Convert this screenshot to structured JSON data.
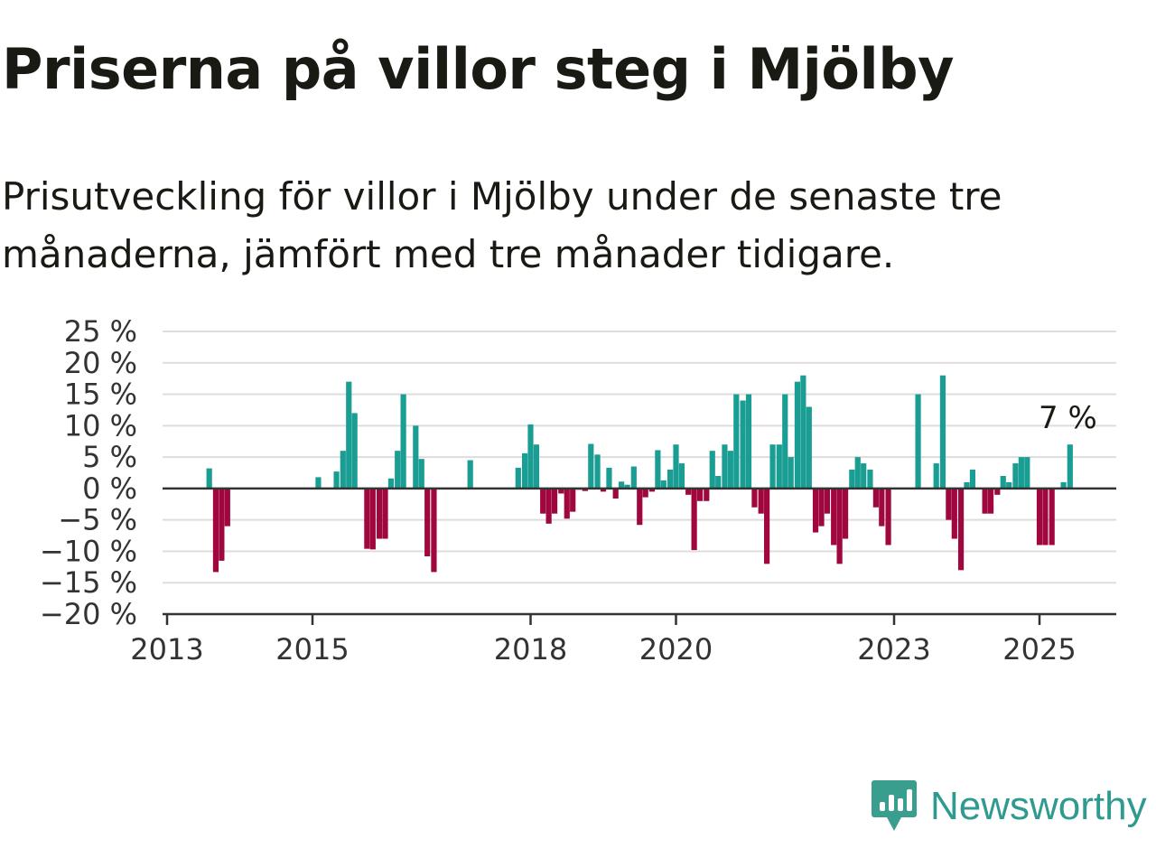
{
  "title": "Priserna på villor steg i Mjölby",
  "subtitle": "Prisutveckling för villor i Mjölby under de senaste tre månaderna, jämfört med tre månader tidigare.",
  "brand": "Newsworthy",
  "colors": {
    "positive": "#1a9e93",
    "negative": "#a0073f",
    "grid": "#dddddd",
    "axis": "#333333",
    "logo": "#3a9e8f"
  },
  "chart_data": {
    "type": "bar",
    "title": "",
    "xlabel": "",
    "ylabel": "",
    "ylim": [
      -20,
      25
    ],
    "y_ticks": [
      25,
      20,
      15,
      10,
      5,
      0,
      -5,
      -10,
      -15,
      -20
    ],
    "y_tick_labels": [
      "25 %",
      "20 %",
      "15 %",
      "10 %",
      "5 %",
      "0 %",
      "−5 %",
      "−10 %",
      "−15 %",
      "−20 %"
    ],
    "x_ticks": [
      2013,
      2015,
      2018,
      2020,
      2023,
      2025
    ],
    "x_tick_labels": [
      "2013",
      "2015",
      "2018",
      "2020",
      "2023",
      "2025"
    ],
    "annotation": {
      "text": "7 %",
      "x": 2025.42,
      "y": 7
    },
    "grid": true,
    "series": [
      {
        "x": [
          2013.58,
          2013.67,
          2013.75,
          2013.83,
          2015.08,
          2015.33,
          2015.42,
          2015.5,
          2015.58,
          2015.75,
          2015.83,
          2015.92,
          2016.0,
          2016.08,
          2016.17,
          2016.25,
          2016.42,
          2016.5,
          2016.58,
          2016.67,
          2017.17,
          2018.83,
          2018.92,
          2019.0,
          2019.08,
          2019.17,
          2019.25,
          2019.33,
          2019.42,
          2019.5,
          2019.58,
          2019.67,
          2019.75,
          2019.83,
          2019.92,
          2020.0,
          2020.08,
          2020.17,
          2020.25,
          2020.33,
          2020.42,
          2020.5,
          2020.58,
          2020.67,
          2020.75,
          2020.83,
          2020.92,
          2021.0,
          2021.08,
          2021.17,
          2021.25,
          2021.33,
          2021.42,
          2021.5,
          2021.58,
          2021.67,
          2021.75,
          2021.83,
          2021.92,
          2022.0,
          2022.08,
          2022.17,
          2022.25,
          2022.33,
          2022.42,
          2022.5,
          2022.58,
          2022.67,
          2022.75,
          2022.83,
          2022.92,
          2023.33,
          2023.58,
          2023.67,
          2023.75,
          2023.83,
          2023.92,
          2024.0,
          2024.08,
          2024.25,
          2024.33,
          2024.42,
          2024.5,
          2024.58,
          2024.67,
          2024.75,
          2024.83,
          2025.0,
          2025.08,
          2025.17,
          2025.33,
          2025.42,
          2017.83,
          2017.92,
          2018.0,
          2018.08,
          2018.17,
          2018.25,
          2018.33,
          2018.42,
          2018.5,
          2018.58,
          2018.67,
          2018.75
        ],
        "values": [
          3.2,
          -13.3,
          -11.5,
          -6,
          1.8,
          2.7,
          6,
          17,
          12,
          -9.6,
          -9.7,
          -8,
          -8,
          1.6,
          6,
          15,
          10,
          4.7,
          -10.8,
          -13.3,
          4.5,
          7.1,
          5.4,
          -0.5,
          3.3,
          -1.6,
          1.1,
          0.6,
          3.5,
          -5.8,
          -1.4,
          -0.5,
          6.1,
          1.3,
          3,
          7,
          4,
          -1,
          -9.8,
          -2,
          -2,
          6,
          2,
          7,
          6,
          15,
          14,
          15,
          -3,
          -4,
          -12,
          7,
          7,
          15,
          5,
          17,
          18,
          13,
          -7,
          -6,
          -4,
          -9,
          -12,
          -8,
          3,
          5,
          4,
          3,
          -3,
          -6,
          -9,
          15,
          4,
          18,
          -5,
          -8,
          -13,
          1,
          3,
          -4,
          -4,
          -1,
          2,
          1,
          4,
          5,
          5,
          -9,
          -9,
          -9,
          1,
          7,
          3.3,
          5.6,
          10.2,
          7,
          -4,
          -5.6,
          -4,
          -0.8,
          -4.8,
          -3.7,
          -0.2,
          -0.4
        ]
      }
    ]
  }
}
